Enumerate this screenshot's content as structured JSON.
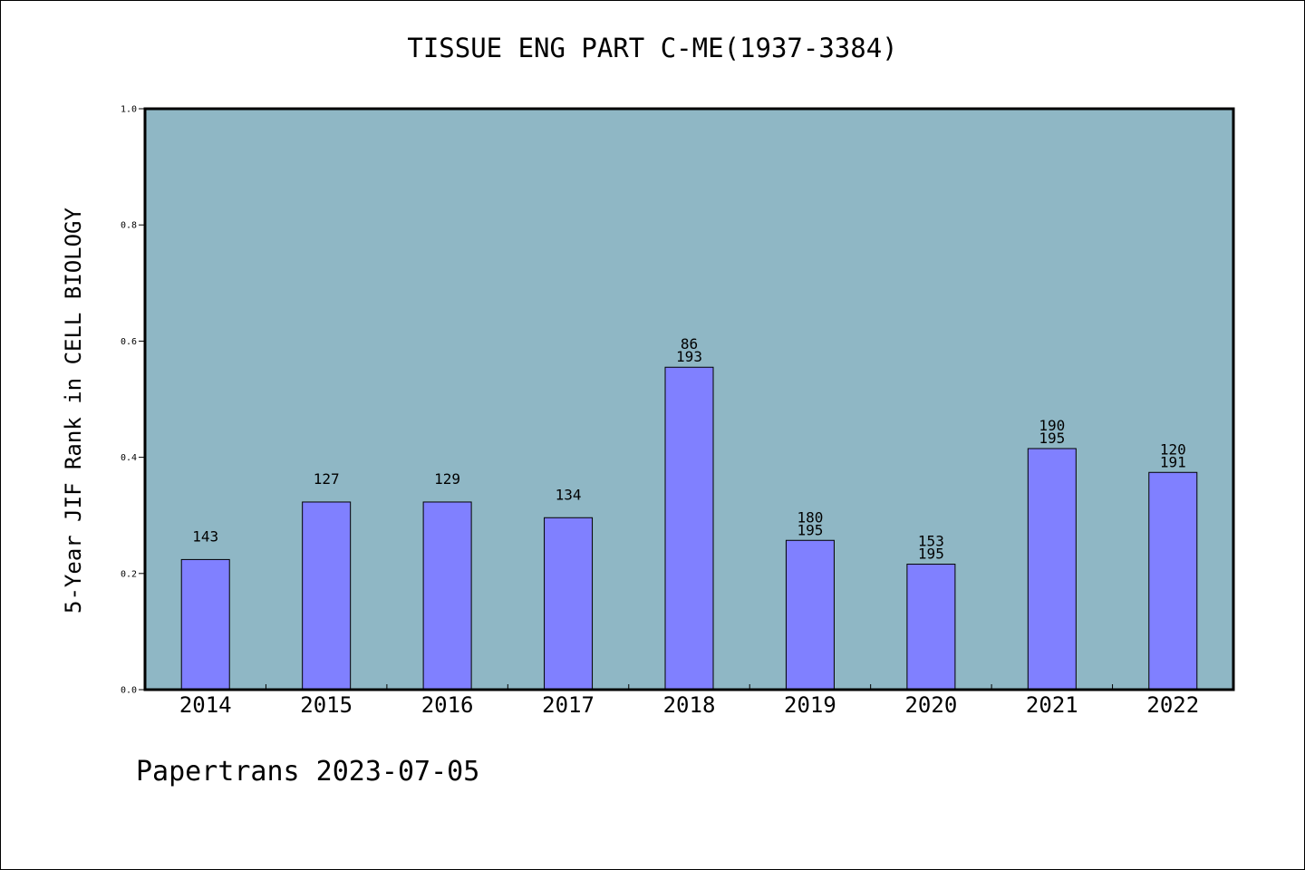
{
  "chart_data": {
    "type": "bar",
    "title": "TISSUE ENG PART C-ME(1937-3384)",
    "ylabel": "5-Year JIF Rank in CELL BIOLOGY",
    "xlabel": "",
    "ylim": [
      0.0,
      1.0
    ],
    "yticks": [
      "0.0",
      "0.2",
      "0.4",
      "0.6",
      "0.8",
      "1.0"
    ],
    "categories": [
      "2014",
      "2015",
      "2016",
      "2017",
      "2018",
      "2019",
      "2020",
      "2021",
      "2022"
    ],
    "values": [
      0.224,
      0.323,
      0.323,
      0.296,
      0.555,
      0.257,
      0.216,
      0.415,
      0.374
    ],
    "labels": [
      [
        "143"
      ],
      [
        "127"
      ],
      [
        "129"
      ],
      [
        "134"
      ],
      [
        "86",
        "193"
      ],
      [
        "180",
        "195"
      ],
      [
        "153",
        "195"
      ],
      [
        "190",
        "195"
      ],
      [
        "120",
        "191"
      ]
    ],
    "grid": false,
    "colors": {
      "plot_bg": "#8fb7c5",
      "bar": "#8080ff",
      "bar_edge": "#000000"
    }
  },
  "footer": {
    "text": "Papertrans 2023-07-05"
  }
}
